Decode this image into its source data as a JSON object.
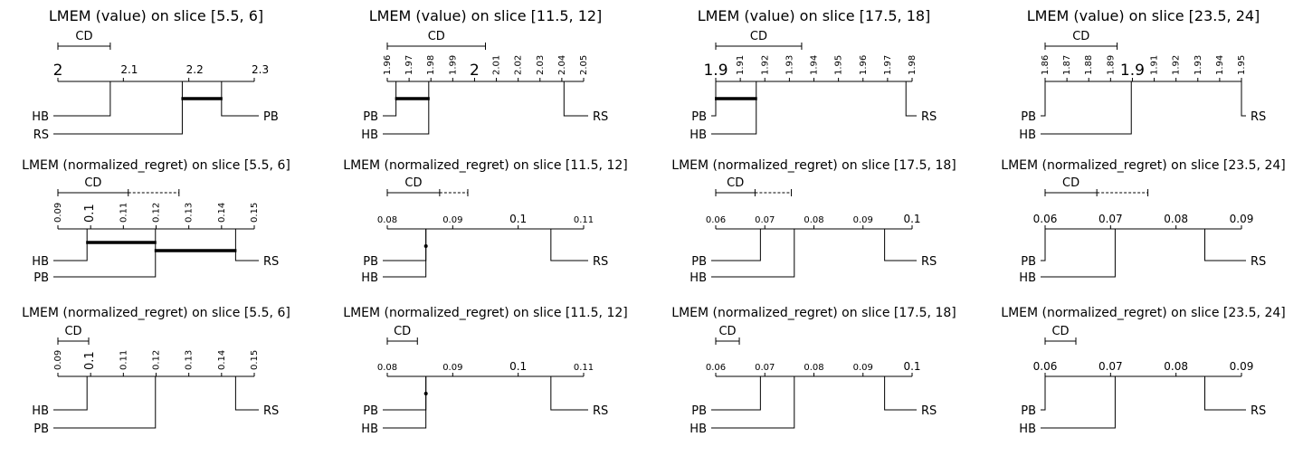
{
  "chart_data": [
    {
      "type": "cd-diagram",
      "title": "LMEM (value)  on slice [5.5, 6]",
      "xlim": [
        2,
        2.3
      ],
      "ticks": [
        {
          "label": "2",
          "value": 2,
          "major": true
        },
        {
          "label": "2.1",
          "value": 2.1
        },
        {
          "label": "2.2",
          "value": 2.2
        },
        {
          "label": "2.3",
          "value": 2.3
        }
      ],
      "cd_label": "CD",
      "cd_value": 0.08,
      "cd_extension": null,
      "methods": [
        {
          "name": "HB",
          "rank": 2.08,
          "side": "left"
        },
        {
          "name": "RS",
          "rank": 2.19,
          "side": "left"
        },
        {
          "name": "PB",
          "rank": 2.25,
          "side": "right"
        }
      ],
      "cliques": [
        [
          2.19,
          2.25
        ]
      ]
    },
    {
      "type": "cd-diagram",
      "title": "LMEM (value)  on slice [11.5, 12]",
      "xlim": [
        1.96,
        2.05
      ],
      "ticks": [
        {
          "label": "1.96",
          "value": 1.96
        },
        {
          "label": "1.97",
          "value": 1.97
        },
        {
          "label": "1.98",
          "value": 1.98
        },
        {
          "label": "1.99",
          "value": 1.99
        },
        {
          "label": "2",
          "value": 2,
          "major": true
        },
        {
          "label": "2.01",
          "value": 2.01
        },
        {
          "label": "2.02",
          "value": 2.02
        },
        {
          "label": "2.03",
          "value": 2.03
        },
        {
          "label": "2.04",
          "value": 2.04
        },
        {
          "label": "2.05",
          "value": 2.05
        }
      ],
      "cd_label": "CD",
      "cd_value": 0.045,
      "cd_extension": null,
      "methods": [
        {
          "name": "PB",
          "rank": 1.964,
          "side": "left"
        },
        {
          "name": "HB",
          "rank": 1.979,
          "side": "left"
        },
        {
          "name": "RS",
          "rank": 2.041,
          "side": "right"
        }
      ],
      "cliques": [
        [
          1.964,
          1.979
        ]
      ]
    },
    {
      "type": "cd-diagram",
      "title": "LMEM (value)  on slice [17.5, 18]",
      "xlim": [
        1.9,
        1.98
      ],
      "ticks": [
        {
          "label": "1.9",
          "value": 1.9,
          "major": true
        },
        {
          "label": "1.91",
          "value": 1.91
        },
        {
          "label": "1.92",
          "value": 1.92
        },
        {
          "label": "1.93",
          "value": 1.93
        },
        {
          "label": "1.94",
          "value": 1.94
        },
        {
          "label": "1.95",
          "value": 1.95
        },
        {
          "label": "1.96",
          "value": 1.96
        },
        {
          "label": "1.97",
          "value": 1.97
        },
        {
          "label": "1.98",
          "value": 1.98
        }
      ],
      "cd_label": "CD",
      "cd_value": 0.035,
      "cd_extension": null,
      "methods": [
        {
          "name": "PB",
          "rank": 1.9,
          "side": "left"
        },
        {
          "name": "HB",
          "rank": 1.9165,
          "side": "left"
        },
        {
          "name": "RS",
          "rank": 1.9775,
          "side": "right"
        }
      ],
      "cliques": [
        [
          1.9,
          1.9165
        ]
      ]
    },
    {
      "type": "cd-diagram",
      "title": "LMEM (value)  on slice [23.5, 24]",
      "xlim": [
        1.86,
        1.95
      ],
      "ticks": [
        {
          "label": "1.86",
          "value": 1.86
        },
        {
          "label": "1.87",
          "value": 1.87
        },
        {
          "label": "1.88",
          "value": 1.88
        },
        {
          "label": "1.89",
          "value": 1.89
        },
        {
          "label": "1.9",
          "value": 1.9,
          "major": true
        },
        {
          "label": "1.91",
          "value": 1.91
        },
        {
          "label": "1.92",
          "value": 1.92
        },
        {
          "label": "1.93",
          "value": 1.93
        },
        {
          "label": "1.94",
          "value": 1.94
        },
        {
          "label": "1.95",
          "value": 1.95
        }
      ],
      "cd_label": "CD",
      "cd_value": 0.033,
      "cd_extension": null,
      "methods": [
        {
          "name": "PB",
          "rank": 1.86,
          "side": "left"
        },
        {
          "name": "HB",
          "rank": 1.8995,
          "side": "left"
        },
        {
          "name": "RS",
          "rank": 1.95,
          "side": "right"
        }
      ],
      "cliques": []
    },
    {
      "type": "cd-diagram",
      "title": "LMEM (normalized_regret)  on slice [5.5, 6]",
      "xlim": [
        0.09,
        0.15
      ],
      "ticks": [
        {
          "label": "0.09",
          "value": 0.09
        },
        {
          "label": "0.1",
          "value": 0.1,
          "major": true
        },
        {
          "label": "0.11",
          "value": 0.11
        },
        {
          "label": "0.12",
          "value": 0.12
        },
        {
          "label": "0.13",
          "value": 0.13
        },
        {
          "label": "0.14",
          "value": 0.14
        },
        {
          "label": "0.15",
          "value": 0.15
        }
      ],
      "cd_label": "CD",
      "cd_value": 0.0215,
      "cd_extension": 0.0155,
      "methods": [
        {
          "name": "HB",
          "rank": 0.0989,
          "side": "left"
        },
        {
          "name": "PB",
          "rank": 0.1198,
          "side": "left"
        },
        {
          "name": "RS",
          "rank": 0.1443,
          "side": "right"
        }
      ],
      "cliques": [
        [
          0.0989,
          0.1198
        ],
        [
          0.1198,
          0.1443
        ]
      ]
    },
    {
      "type": "cd-diagram",
      "title": "LMEM (normalized_regret)  on slice [11.5, 12]",
      "xlim": [
        0.08,
        0.11
      ],
      "ticks": [
        {
          "label": "0.08",
          "value": 0.08
        },
        {
          "label": "0.09",
          "value": 0.09
        },
        {
          "label": "0.1",
          "value": 0.1,
          "major": true
        },
        {
          "label": "0.11",
          "value": 0.11
        }
      ],
      "cd_label": "CD",
      "cd_value": 0.008,
      "cd_extension": 0.0043,
      "methods": [
        {
          "name": "PB",
          "rank": 0.0859,
          "side": "left"
        },
        {
          "name": "HB",
          "rank": 0.0859,
          "side": "left"
        },
        {
          "name": "RS",
          "rank": 0.105,
          "side": "right"
        }
      ],
      "cliques": [
        [
          0.0859,
          0.0859
        ]
      ]
    },
    {
      "type": "cd-diagram",
      "title": "LMEM (normalized_regret)  on slice [17.5, 18]",
      "xlim": [
        0.06,
        0.1
      ],
      "ticks": [
        {
          "label": "0.06",
          "value": 0.06
        },
        {
          "label": "0.07",
          "value": 0.07
        },
        {
          "label": "0.08",
          "value": 0.08
        },
        {
          "label": "0.09",
          "value": 0.09
        },
        {
          "label": "0.1",
          "value": 0.1,
          "major": true
        }
      ],
      "cd_label": "CD",
      "cd_value": 0.008,
      "cd_extension": 0.0074,
      "methods": [
        {
          "name": "PB",
          "rank": 0.0691,
          "side": "left"
        },
        {
          "name": "HB",
          "rank": 0.076,
          "side": "left"
        },
        {
          "name": "RS",
          "rank": 0.0944,
          "side": "right"
        }
      ],
      "cliques": []
    },
    {
      "type": "cd-diagram",
      "title": "LMEM (normalized_regret)  on slice [23.5, 24]",
      "xlim": [
        0.06,
        0.09
      ],
      "ticks": [
        {
          "label": "0.06",
          "value": 0.06,
          "major": true
        },
        {
          "label": "0.07",
          "value": 0.07,
          "major": true
        },
        {
          "label": "0.08",
          "value": 0.08,
          "major": true
        },
        {
          "label": "0.09",
          "value": 0.09,
          "major": true
        }
      ],
      "cd_label": "CD",
      "cd_value": 0.0079,
      "cd_extension": 0.0078,
      "methods": [
        {
          "name": "PB",
          "rank": 0.06,
          "side": "left"
        },
        {
          "name": "HB",
          "rank": 0.0707,
          "side": "left"
        },
        {
          "name": "RS",
          "rank": 0.0844,
          "side": "right"
        }
      ],
      "cliques": []
    },
    {
      "type": "cd-diagram",
      "title": "LMEM (normalized_regret)  on slice [5.5, 6]",
      "xlim": [
        0.09,
        0.15
      ],
      "ticks": [
        {
          "label": "0.09",
          "value": 0.09
        },
        {
          "label": "0.1",
          "value": 0.1,
          "major": true
        },
        {
          "label": "0.11",
          "value": 0.11
        },
        {
          "label": "0.12",
          "value": 0.12
        },
        {
          "label": "0.13",
          "value": 0.13
        },
        {
          "label": "0.14",
          "value": 0.14
        },
        {
          "label": "0.15",
          "value": 0.15
        }
      ],
      "cd_label": "CD",
      "cd_value": 0.0094,
      "cd_extension": null,
      "methods": [
        {
          "name": "HB",
          "rank": 0.0989,
          "side": "left"
        },
        {
          "name": "PB",
          "rank": 0.1198,
          "side": "left"
        },
        {
          "name": "RS",
          "rank": 0.1443,
          "side": "right"
        }
      ],
      "cliques": []
    },
    {
      "type": "cd-diagram",
      "title": "LMEM (normalized_regret)  on slice [11.5, 12]",
      "xlim": [
        0.08,
        0.11
      ],
      "ticks": [
        {
          "label": "0.08",
          "value": 0.08
        },
        {
          "label": "0.09",
          "value": 0.09
        },
        {
          "label": "0.1",
          "value": 0.1,
          "major": true
        },
        {
          "label": "0.11",
          "value": 0.11
        }
      ],
      "cd_label": "CD",
      "cd_value": 0.0046,
      "cd_extension": null,
      "methods": [
        {
          "name": "PB",
          "rank": 0.0859,
          "side": "left"
        },
        {
          "name": "HB",
          "rank": 0.0859,
          "side": "left"
        },
        {
          "name": "RS",
          "rank": 0.105,
          "side": "right"
        }
      ],
      "cliques": [
        [
          0.0859,
          0.0859
        ]
      ]
    },
    {
      "type": "cd-diagram",
      "title": "LMEM (normalized_regret)  on slice [17.5, 18]",
      "xlim": [
        0.06,
        0.1
      ],
      "ticks": [
        {
          "label": "0.06",
          "value": 0.06
        },
        {
          "label": "0.07",
          "value": 0.07
        },
        {
          "label": "0.08",
          "value": 0.08
        },
        {
          "label": "0.09",
          "value": 0.09
        },
        {
          "label": "0.1",
          "value": 0.1,
          "major": true
        }
      ],
      "cd_label": "CD",
      "cd_value": 0.0048,
      "cd_extension": null,
      "methods": [
        {
          "name": "PB",
          "rank": 0.0691,
          "side": "left"
        },
        {
          "name": "HB",
          "rank": 0.076,
          "side": "left"
        },
        {
          "name": "RS",
          "rank": 0.0944,
          "side": "right"
        }
      ],
      "cliques": []
    },
    {
      "type": "cd-diagram",
      "title": "LMEM (normalized_regret)  on slice [23.5, 24]",
      "xlim": [
        0.06,
        0.09
      ],
      "ticks": [
        {
          "label": "0.06",
          "value": 0.06,
          "major": true
        },
        {
          "label": "0.07",
          "value": 0.07,
          "major": true
        },
        {
          "label": "0.08",
          "value": 0.08,
          "major": true
        },
        {
          "label": "0.09",
          "value": 0.09,
          "major": true
        }
      ],
      "cd_label": "CD",
      "cd_value": 0.0047,
      "cd_extension": null,
      "methods": [
        {
          "name": "PB",
          "rank": 0.06,
          "side": "left"
        },
        {
          "name": "HB",
          "rank": 0.0707,
          "side": "left"
        },
        {
          "name": "RS",
          "rank": 0.0844,
          "side": "right"
        }
      ],
      "cliques": []
    }
  ]
}
